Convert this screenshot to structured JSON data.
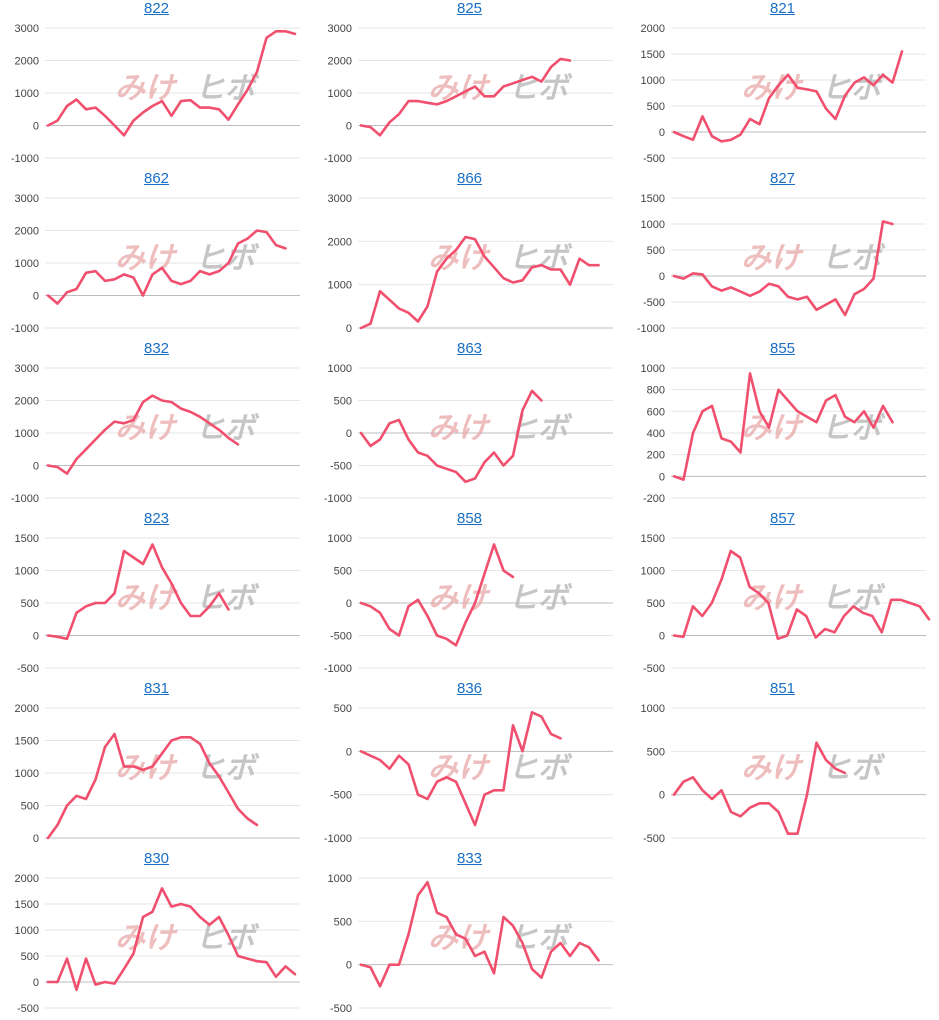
{
  "colors": {
    "line": "#f0506e",
    "link": "#1a6fc4"
  },
  "watermark": {
    "part1": "みけ",
    "part2": "ヒボ"
  },
  "chart_data": [
    {
      "type": "line",
      "title": "822",
      "ylim": [
        -1000,
        3000
      ],
      "yticks": [
        -1000,
        0,
        1000,
        2000,
        3000
      ],
      "values": [
        0,
        150,
        600,
        800,
        500,
        550,
        300,
        0,
        -300,
        150,
        400,
        600,
        750,
        300,
        750,
        780,
        550,
        550,
        500,
        180,
        650,
        1100,
        1650,
        2700,
        2900,
        2900,
        2820
      ]
    },
    {
      "type": "line",
      "title": "825",
      "ylim": [
        -1000,
        3000
      ],
      "yticks": [
        -1000,
        0,
        1000,
        2000,
        3000
      ],
      "values": [
        0,
        -50,
        -300,
        100,
        350,
        750,
        750,
        700,
        650,
        750,
        900,
        1050,
        1200,
        900,
        900,
        1200,
        1300,
        1400,
        1500,
        1350,
        1800,
        2050,
        2000
      ]
    },
    {
      "type": "line",
      "title": "821",
      "ylim": [
        -500,
        2000
      ],
      "yticks": [
        -500,
        0,
        500,
        1000,
        1500,
        2000
      ],
      "values": [
        0,
        -80,
        -150,
        300,
        -80,
        -180,
        -150,
        -50,
        250,
        150,
        650,
        900,
        1100,
        850,
        820,
        780,
        450,
        250,
        700,
        950,
        1050,
        900,
        1100,
        950,
        1550
      ]
    },
    {
      "type": "line",
      "title": "862",
      "ylim": [
        -1000,
        3000
      ],
      "yticks": [
        -1000,
        0,
        1000,
        2000,
        3000
      ],
      "values": [
        0,
        -250,
        100,
        200,
        700,
        750,
        450,
        500,
        650,
        550,
        0,
        650,
        850,
        450,
        350,
        450,
        750,
        650,
        750,
        1000,
        1600,
        1750,
        2000,
        1950,
        1550,
        1450
      ]
    },
    {
      "type": "line",
      "title": "866",
      "ylim": [
        0,
        3000
      ],
      "yticks": [
        0,
        1000,
        2000,
        3000
      ],
      "values": [
        0,
        100,
        850,
        650,
        450,
        350,
        150,
        500,
        1300,
        1600,
        1800,
        2100,
        2050,
        1650,
        1400,
        1150,
        1050,
        1100,
        1400,
        1450,
        1350,
        1350,
        1000,
        1600,
        1450,
        1450
      ]
    },
    {
      "type": "line",
      "title": "827",
      "ylim": [
        -1000,
        1500
      ],
      "yticks": [
        -1000,
        -500,
        0,
        500,
        1000,
        1500
      ],
      "values": [
        0,
        -50,
        50,
        30,
        -200,
        -280,
        -220,
        -300,
        -380,
        -300,
        -150,
        -200,
        -400,
        -450,
        -400,
        -650,
        -550,
        -450,
        -750,
        -350,
        -250,
        -50,
        1050,
        1000
      ]
    },
    {
      "type": "line",
      "title": "832",
      "ylim": [
        -1000,
        3000
      ],
      "yticks": [
        -1000,
        0,
        1000,
        2000,
        3000
      ],
      "values": [
        0,
        -50,
        -250,
        200,
        500,
        800,
        1100,
        1350,
        1300,
        1400,
        1950,
        2150,
        2000,
        1950,
        1750,
        1650,
        1500,
        1300,
        1100,
        850,
        650
      ]
    },
    {
      "type": "line",
      "title": "863",
      "ylim": [
        -1000,
        1000
      ],
      "yticks": [
        -1000,
        -500,
        0,
        500,
        1000
      ],
      "values": [
        0,
        -200,
        -100,
        150,
        200,
        -100,
        -300,
        -350,
        -500,
        -550,
        -600,
        -750,
        -700,
        -450,
        -300,
        -500,
        -350,
        350,
        650,
        500
      ]
    },
    {
      "type": "line",
      "title": "855",
      "ylim": [
        -200,
        1000
      ],
      "yticks": [
        -200,
        0,
        200,
        400,
        600,
        800,
        1000
      ],
      "values": [
        0,
        -30,
        400,
        600,
        650,
        350,
        320,
        220,
        950,
        600,
        450,
        800,
        700,
        600,
        550,
        500,
        700,
        750,
        550,
        500,
        600,
        450,
        650,
        500
      ]
    },
    {
      "type": "line",
      "title": "823",
      "ylim": [
        -500,
        1500
      ],
      "yticks": [
        -500,
        0,
        500,
        1000,
        1500
      ],
      "values": [
        0,
        -20,
        -50,
        350,
        450,
        500,
        500,
        650,
        1300,
        1200,
        1100,
        1400,
        1050,
        800,
        500,
        300,
        300,
        450,
        650,
        400
      ]
    },
    {
      "type": "line",
      "title": "858",
      "ylim": [
        -1000,
        1000
      ],
      "yticks": [
        -1000,
        -500,
        0,
        500,
        1000
      ],
      "values": [
        0,
        -50,
        -150,
        -400,
        -500,
        -50,
        50,
        -200,
        -500,
        -550,
        -650,
        -300,
        0,
        450,
        900,
        500,
        400
      ]
    },
    {
      "type": "line",
      "title": "857",
      "ylim": [
        -500,
        1500
      ],
      "yticks": [
        -500,
        0,
        500,
        1000,
        1500
      ],
      "values": [
        0,
        -20,
        450,
        300,
        500,
        850,
        1300,
        1200,
        750,
        650,
        500,
        -50,
        0,
        400,
        300,
        -30,
        100,
        50,
        300,
        450,
        350,
        300,
        50,
        550,
        550,
        500,
        450,
        250
      ]
    },
    {
      "type": "line",
      "title": "831",
      "ylim": [
        0,
        2000
      ],
      "yticks": [
        0,
        500,
        1000,
        1500,
        2000
      ],
      "values": [
        0,
        200,
        500,
        650,
        600,
        900,
        1400,
        1600,
        1100,
        1100,
        1050,
        1100,
        1300,
        1500,
        1550,
        1550,
        1450,
        1150,
        950,
        700,
        450,
        300,
        200
      ]
    },
    {
      "type": "line",
      "title": "836",
      "ylim": [
        -1000,
        500
      ],
      "yticks": [
        -1000,
        -500,
        0,
        500
      ],
      "values": [
        0,
        -50,
        -100,
        -200,
        -50,
        -150,
        -500,
        -550,
        -350,
        -300,
        -350,
        -600,
        -850,
        -500,
        -450,
        -450,
        300,
        0,
        450,
        400,
        200,
        150
      ]
    },
    {
      "type": "line",
      "title": "851",
      "ylim": [
        -500,
        1000
      ],
      "yticks": [
        -500,
        0,
        500,
        1000
      ],
      "values": [
        0,
        150,
        200,
        50,
        -50,
        50,
        -200,
        -250,
        -150,
        -100,
        -100,
        -200,
        -450,
        -450,
        0,
        600,
        400,
        300,
        250
      ]
    },
    {
      "type": "line",
      "title": "830",
      "ylim": [
        -500,
        2000
      ],
      "yticks": [
        -500,
        0,
        500,
        1000,
        1500,
        2000
      ],
      "values": [
        0,
        0,
        450,
        -150,
        450,
        -50,
        0,
        -30,
        250,
        550,
        1250,
        1350,
        1800,
        1450,
        1500,
        1450,
        1250,
        1100,
        1250,
        900,
        500,
        450,
        400,
        380,
        100,
        300,
        150
      ]
    },
    {
      "type": "line",
      "title": "833",
      "ylim": [
        -500,
        1000
      ],
      "yticks": [
        -500,
        0,
        500,
        1000
      ],
      "values": [
        0,
        -30,
        -250,
        0,
        0,
        350,
        800,
        950,
        600,
        550,
        350,
        300,
        100,
        150,
        -100,
        550,
        450,
        250,
        -50,
        -150,
        150,
        250,
        100,
        250,
        200,
        50
      ]
    }
  ]
}
